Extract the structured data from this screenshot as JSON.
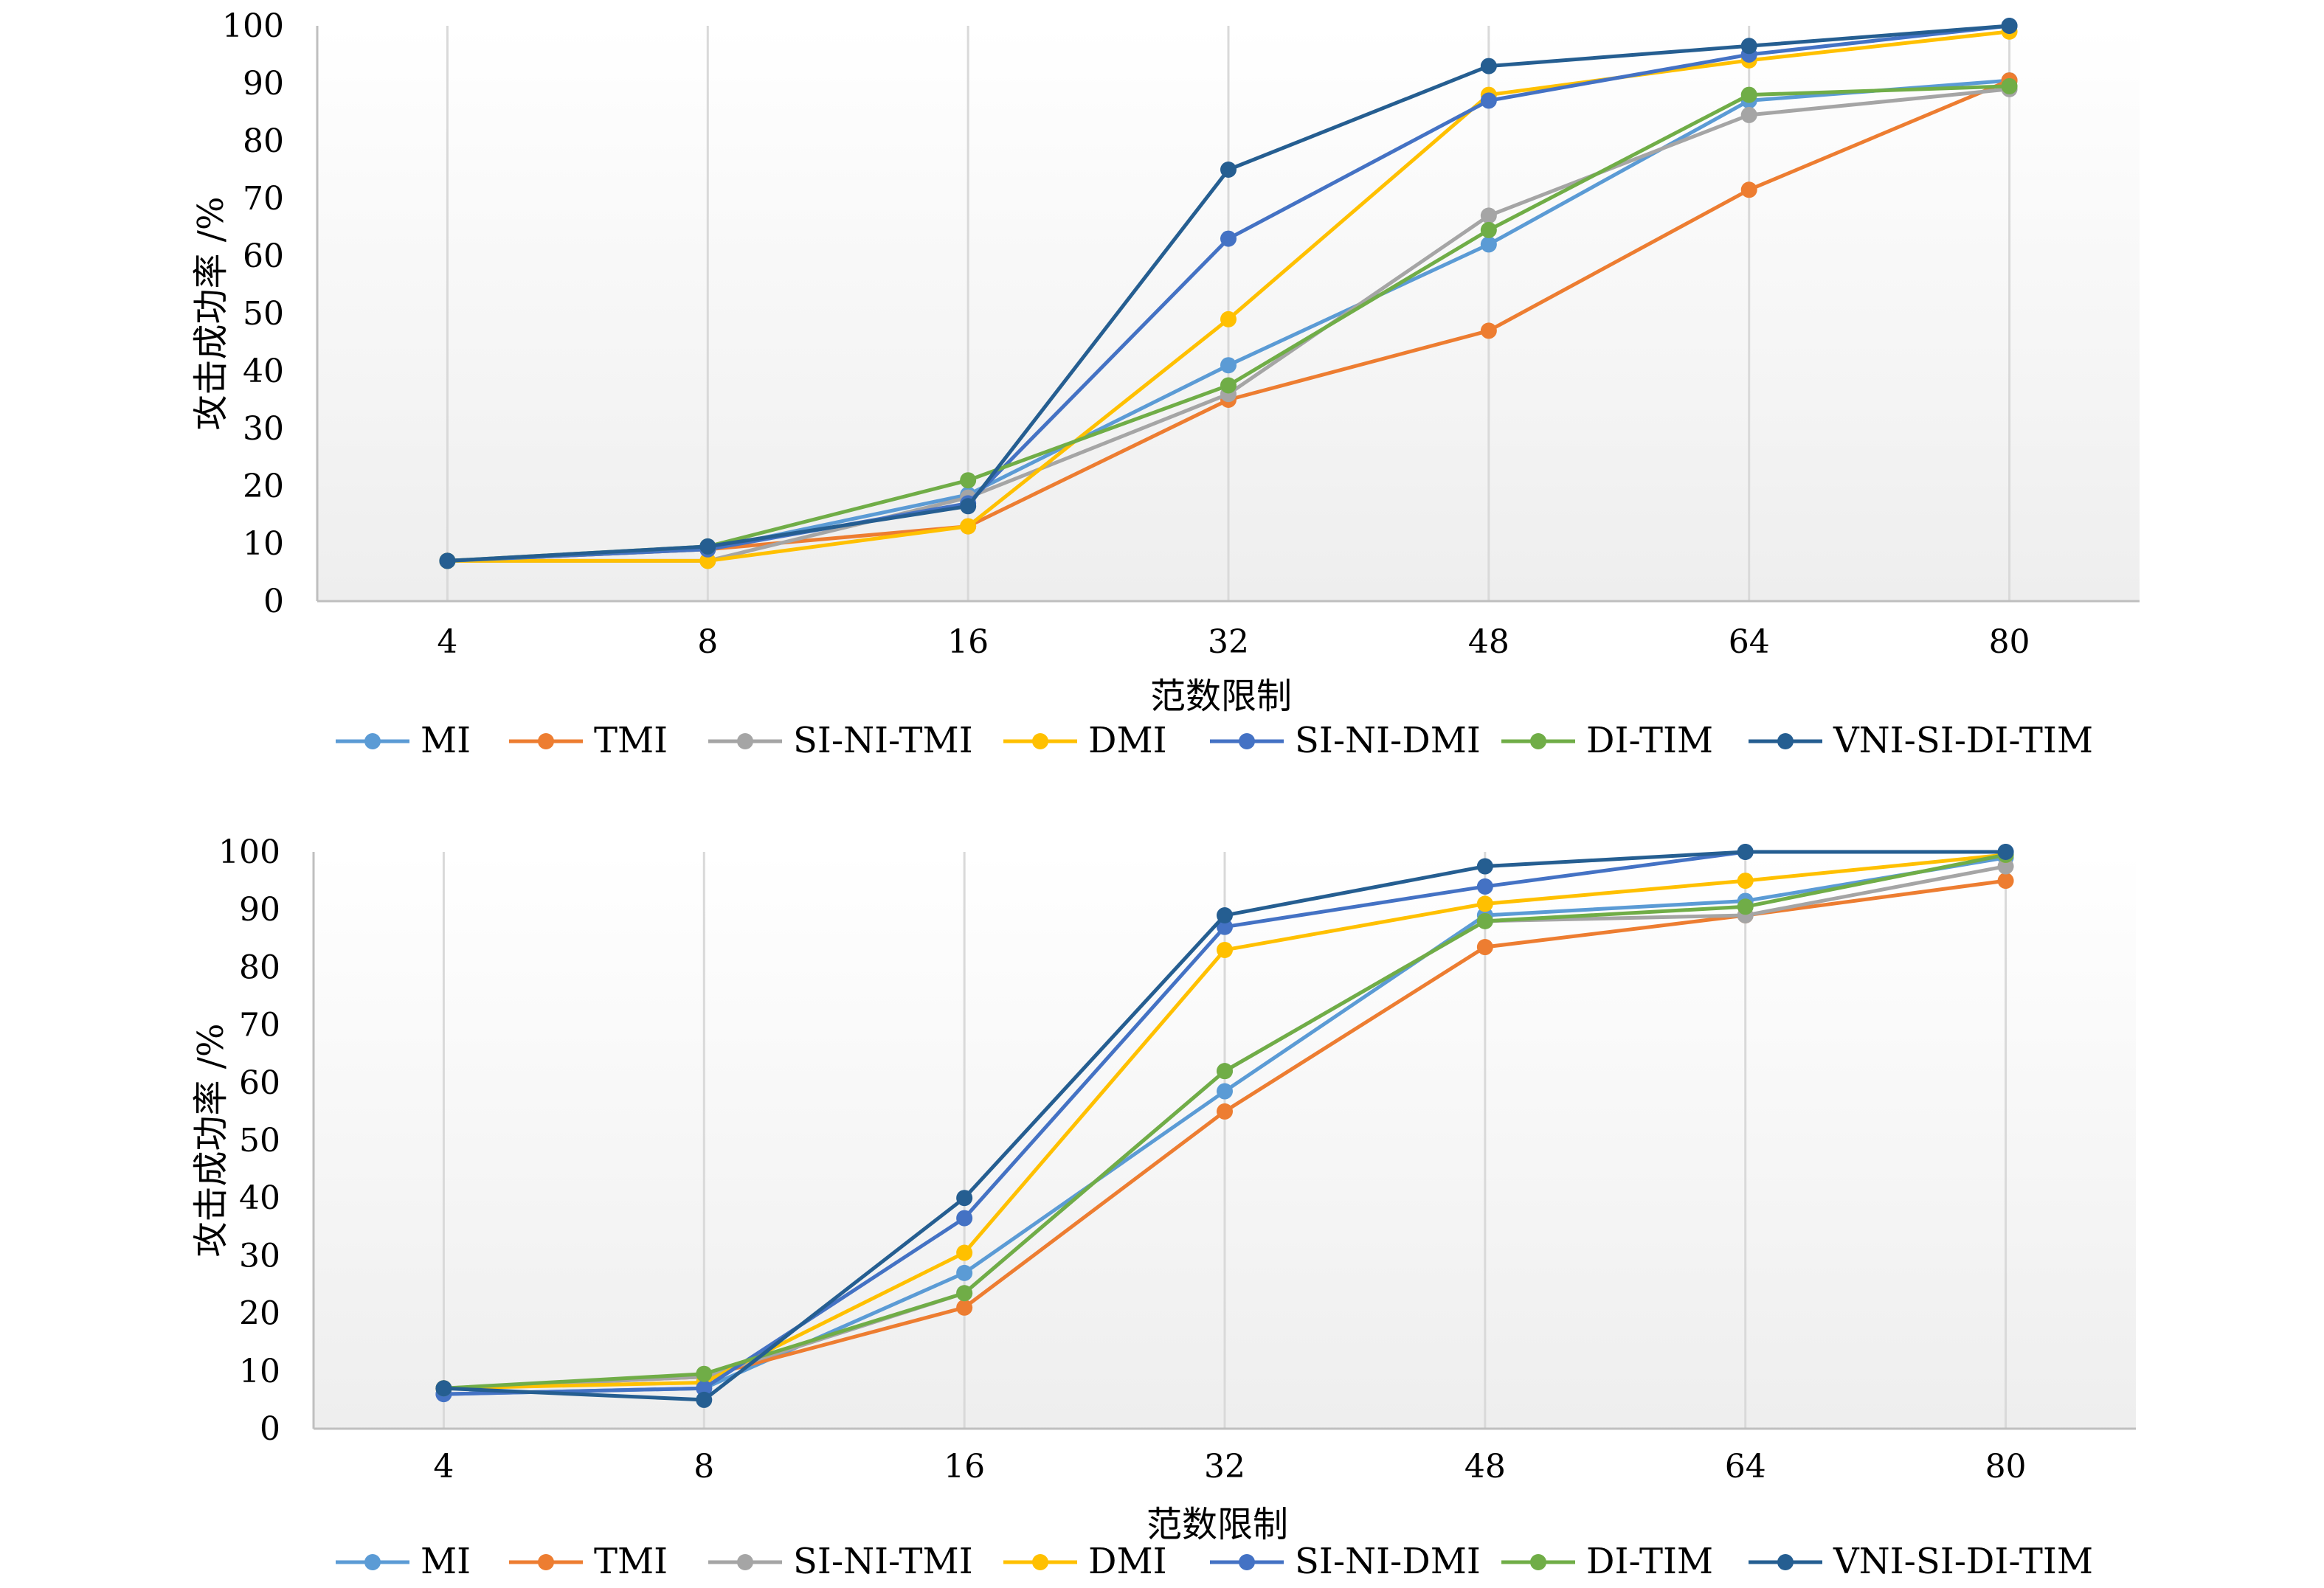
{
  "chart_data": [
    {
      "type": "line",
      "xlabel": "范数限制",
      "ylabel": "攻击成功率 /%",
      "categories": [
        "4",
        "8",
        "16",
        "32",
        "48",
        "64",
        "80"
      ],
      "ylim": [
        0,
        100
      ],
      "yticks": [
        "0",
        "10",
        "20",
        "30",
        "40",
        "50",
        "60",
        "70",
        "80",
        "90",
        "100"
      ],
      "grid": "vertical gridlines at categories",
      "legend": "bottom",
      "series": [
        {
          "name": "MI",
          "color": "#5B9BD5",
          "values": [
            7,
            9,
            18.5,
            41,
            62,
            87,
            90.5
          ]
        },
        {
          "name": "TMI",
          "color": "#ED7D31",
          "values": [
            7,
            9,
            13,
            35,
            47,
            71.5,
            90.5
          ]
        },
        {
          "name": "SI-NI-TMI",
          "color": "#A5A5A5",
          "values": [
            7,
            7,
            18,
            36,
            67,
            84.5,
            89
          ]
        },
        {
          "name": "DMI",
          "color": "#FFC000",
          "values": [
            7,
            7,
            13,
            49,
            88,
            94,
            99
          ]
        },
        {
          "name": "SI-NI-DMI",
          "color": "#4472C4",
          "values": [
            7,
            9,
            17,
            63,
            87,
            95,
            100
          ]
        },
        {
          "name": "DI-TIM",
          "color": "#70AD47",
          "values": [
            7,
            9.5,
            21,
            37.5,
            64.5,
            88,
            89.5
          ]
        },
        {
          "name": "VNI-SI-DI-TIM",
          "color": "#255E91",
          "values": [
            7,
            9.5,
            16.5,
            75,
            93,
            96.5,
            100
          ]
        }
      ]
    },
    {
      "type": "line",
      "xlabel": "范数限制",
      "ylabel": "攻击成功率 /%",
      "categories": [
        "4",
        "8",
        "16",
        "32",
        "48",
        "64",
        "80"
      ],
      "ylim": [
        0,
        100
      ],
      "yticks": [
        "0",
        "10",
        "20",
        "30",
        "40",
        "50",
        "60",
        "70",
        "80",
        "90",
        "100"
      ],
      "grid": "vertical gridlines at categories",
      "legend": "bottom",
      "series": [
        {
          "name": "MI",
          "color": "#5B9BD5",
          "values": [
            6,
            7,
            27,
            58.5,
            89,
            91.5,
            99
          ]
        },
        {
          "name": "TMI",
          "color": "#ED7D31",
          "values": [
            7,
            9,
            21,
            55,
            83.5,
            89,
            95
          ]
        },
        {
          "name": "SI-NI-TMI",
          "color": "#A5A5A5",
          "values": [
            7,
            9,
            23.5,
            62,
            88,
            89,
            97.5
          ]
        },
        {
          "name": "DMI",
          "color": "#FFC000",
          "values": [
            7,
            8,
            30.5,
            83,
            91,
            95,
            99.5
          ]
        },
        {
          "name": "SI-NI-DMI",
          "color": "#4472C4",
          "values": [
            6,
            7,
            36.5,
            87,
            94,
            100,
            100
          ]
        },
        {
          "name": "DI-TIM",
          "color": "#70AD47",
          "values": [
            7,
            9.5,
            23.5,
            62,
            88,
            90.5,
            99.5
          ]
        },
        {
          "name": "VNI-SI-DI-TIM",
          "color": "#255E91",
          "values": [
            7,
            5,
            40,
            89,
            97.5,
            100,
            100
          ]
        }
      ]
    }
  ]
}
